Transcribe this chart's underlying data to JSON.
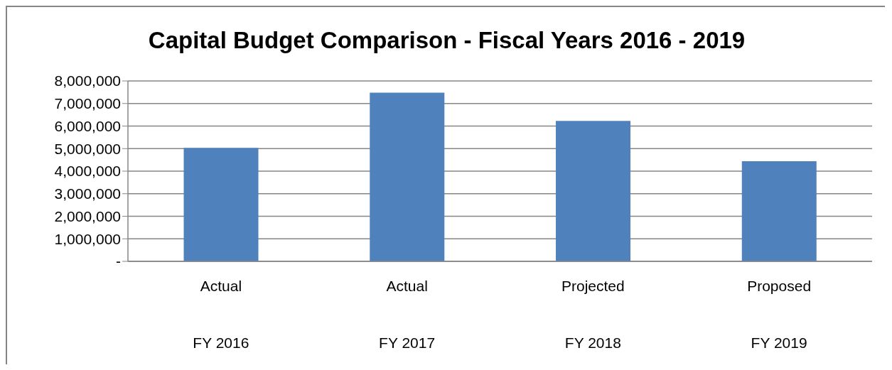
{
  "chart_data": {
    "type": "bar",
    "title": "Capital Budget Comparison - Fiscal Years 2016 - 2019",
    "categories": [
      "Actual\nFY 2016",
      "Actual\nFY 2017",
      "Projected\nFY 2018",
      "Proposed\nFY 2019"
    ],
    "values": [
      5030000,
      7480000,
      6230000,
      4440000
    ],
    "color": "#4f81bd",
    "ylim": [
      0,
      8000000
    ],
    "yticks": [
      {
        "value": 0,
        "label": "-"
      },
      {
        "value": 1000000,
        "label": "1,000,000"
      },
      {
        "value": 2000000,
        "label": "2,000,000"
      },
      {
        "value": 3000000,
        "label": "3,000,000"
      },
      {
        "value": 4000000,
        "label": "4,000,000"
      },
      {
        "value": 5000000,
        "label": "5,000,000"
      },
      {
        "value": 6000000,
        "label": "6,000,000"
      },
      {
        "value": 7000000,
        "label": "7,000,000"
      },
      {
        "value": 8000000,
        "label": "8,000,000"
      }
    ],
    "grid": "y",
    "legend": false
  }
}
